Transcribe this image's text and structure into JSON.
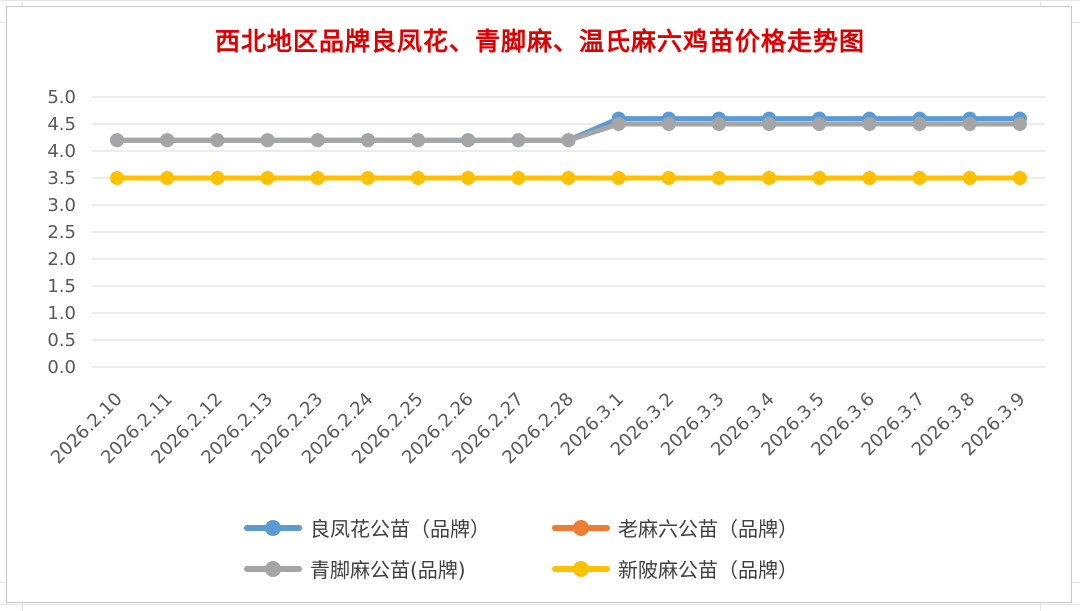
{
  "chart_data": {
    "type": "line",
    "title": "西北地区品牌良凤花、青脚麻、温氏麻六鸡苗价格走势图",
    "categories": [
      "2026.2.10",
      "2026.2.11",
      "2026.2.12",
      "2026.2.13",
      "2026.2.23",
      "2026.2.24",
      "2026.2.25",
      "2026.2.26",
      "2026.2.27",
      "2026.2.28",
      "2026.3.1",
      "2026.3.2",
      "2026.3.3",
      "2026.3.4",
      "2026.3.5",
      "2026.3.6",
      "2026.3.7",
      "2026.3.8",
      "2026.3.9"
    ],
    "y_ticks": [
      "5.0",
      "4.5",
      "4.0",
      "3.5",
      "3.0",
      "2.5",
      "2.0",
      "1.5",
      "1.0",
      "0.5",
      "0.0"
    ],
    "ylim": [
      0,
      5
    ],
    "grid": "horizontal",
    "legend_position": "bottom",
    "series": [
      {
        "name": "良凤花公苗（品牌）",
        "color": "#5b9bd5",
        "values": [
          4.2,
          4.2,
          4.2,
          4.2,
          4.2,
          4.2,
          4.2,
          4.2,
          4.2,
          4.2,
          4.6,
          4.6,
          4.6,
          4.6,
          4.6,
          4.6,
          4.6,
          4.6,
          4.6
        ]
      },
      {
        "name": "老麻六公苗（品牌）",
        "color": "#ed7d31",
        "values": [
          null,
          null,
          null,
          null,
          null,
          null,
          null,
          null,
          null,
          null,
          null,
          null,
          null,
          null,
          null,
          null,
          null,
          null,
          null
        ]
      },
      {
        "name": "青脚麻公苗(品牌)",
        "color": "#a5a5a5",
        "values": [
          4.2,
          4.2,
          4.2,
          4.2,
          4.2,
          4.2,
          4.2,
          4.2,
          4.2,
          4.2,
          4.5,
          4.5,
          4.5,
          4.5,
          4.5,
          4.5,
          4.5,
          4.5,
          4.5
        ]
      },
      {
        "name": "新陂麻公苗（品牌）",
        "color": "#ffc000",
        "values": [
          3.5,
          3.5,
          3.5,
          3.5,
          3.5,
          3.5,
          3.5,
          3.5,
          3.5,
          3.5,
          3.5,
          3.5,
          3.5,
          3.5,
          3.5,
          3.5,
          3.5,
          3.5,
          3.5
        ]
      }
    ]
  }
}
